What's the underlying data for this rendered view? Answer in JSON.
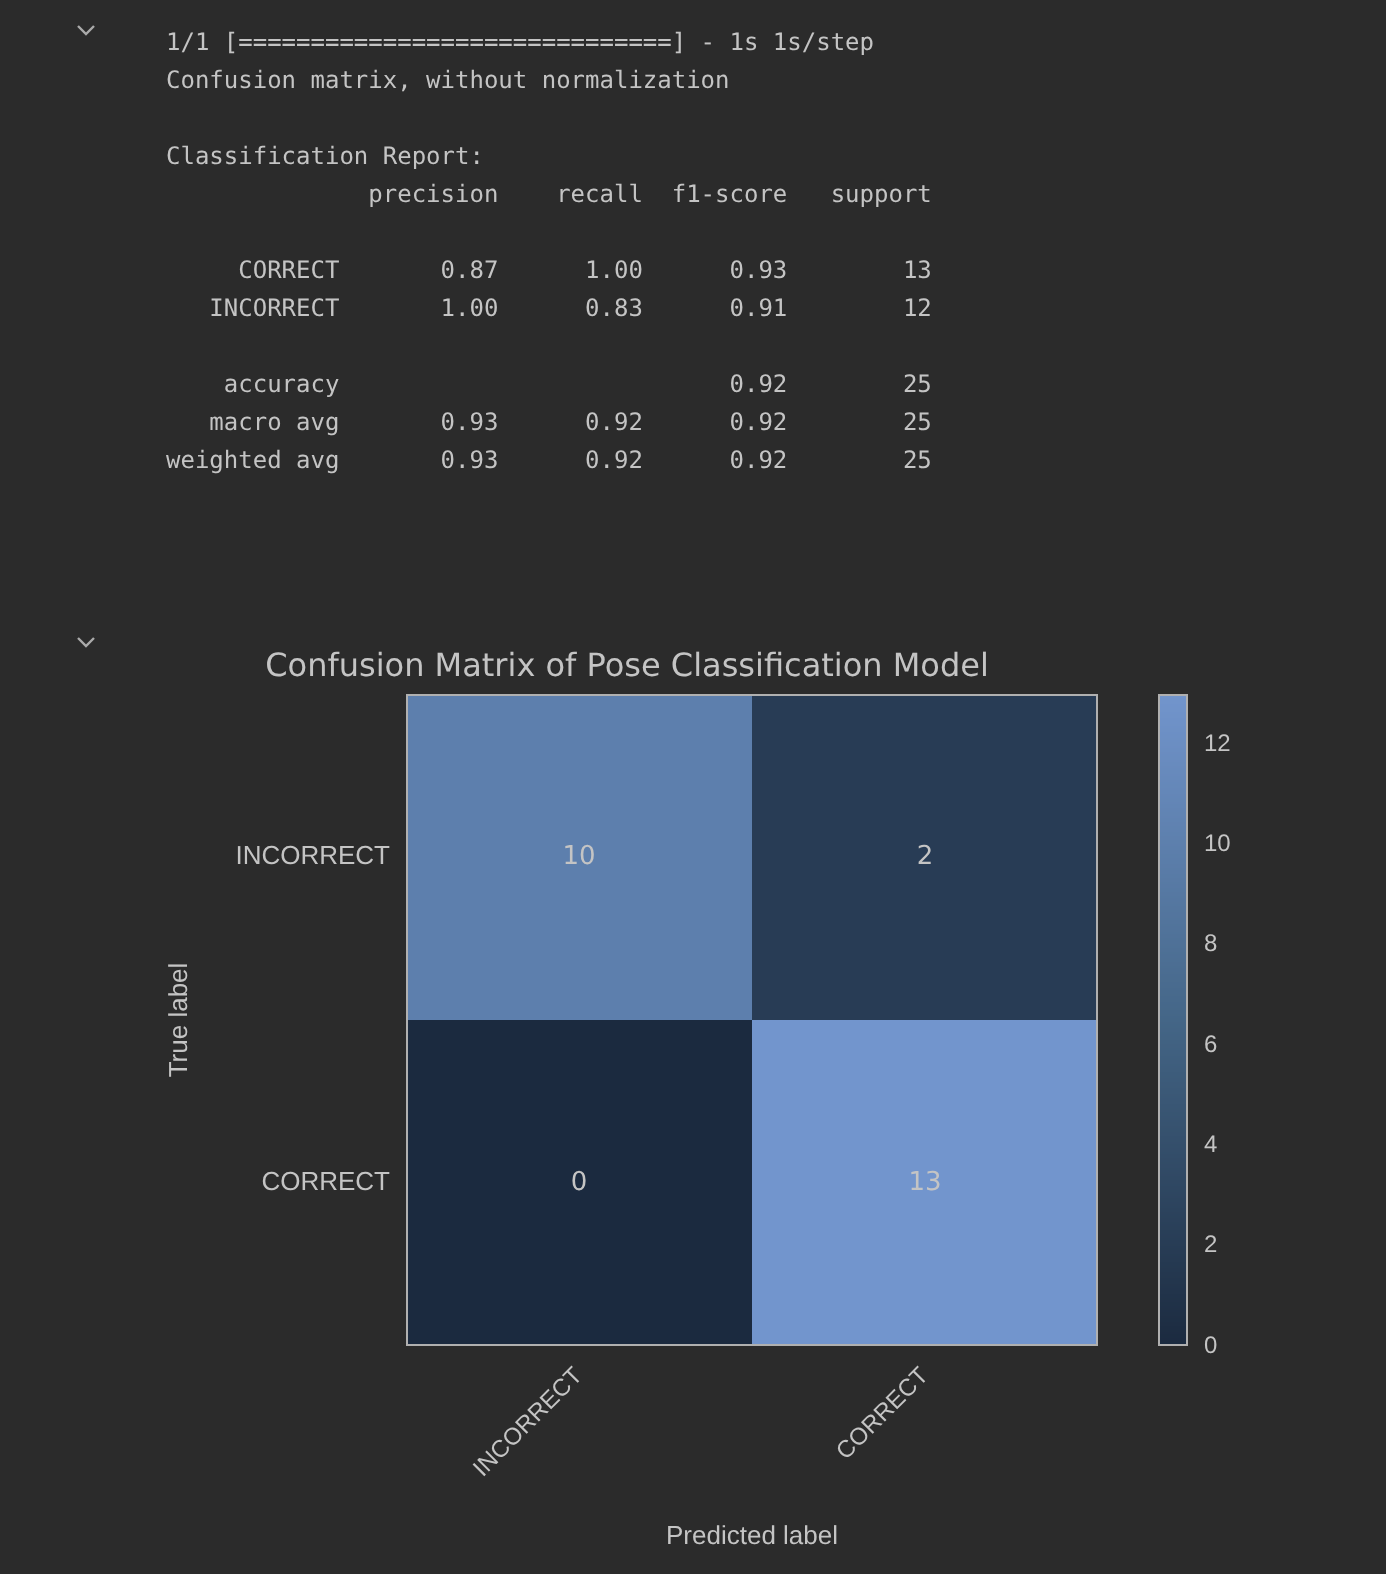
{
  "chart_data": {
    "type": "heatmap",
    "title": "Confusion Matrix of Pose Classification Model",
    "xlabel": "Predicted label",
    "ylabel": "True label",
    "categories": [
      "INCORRECT",
      "CORRECT"
    ],
    "y_categories": [
      "INCORRECT",
      "CORRECT"
    ],
    "cells": [
      [
        10,
        2
      ],
      [
        0,
        13
      ]
    ],
    "clim": [
      0,
      13
    ],
    "cticks": [
      0,
      2,
      4,
      6,
      8,
      10,
      12
    ],
    "data_labels": true,
    "annotations": [
      "1/1 [==============================] - 1s 1s/step\nConfusion matrix, without normalization\n\nClassification Report:\n              precision    recall  f1-score   support\n\n     CORRECT       0.87      1.00      0.93        13\n   INCORRECT       1.00      0.83      0.91        12\n\n    accuracy                           0.92        25\n   macro avg       0.93      0.92      0.92        25\nweighted avg       0.93      0.92      0.92        25"
    ]
  }
}
